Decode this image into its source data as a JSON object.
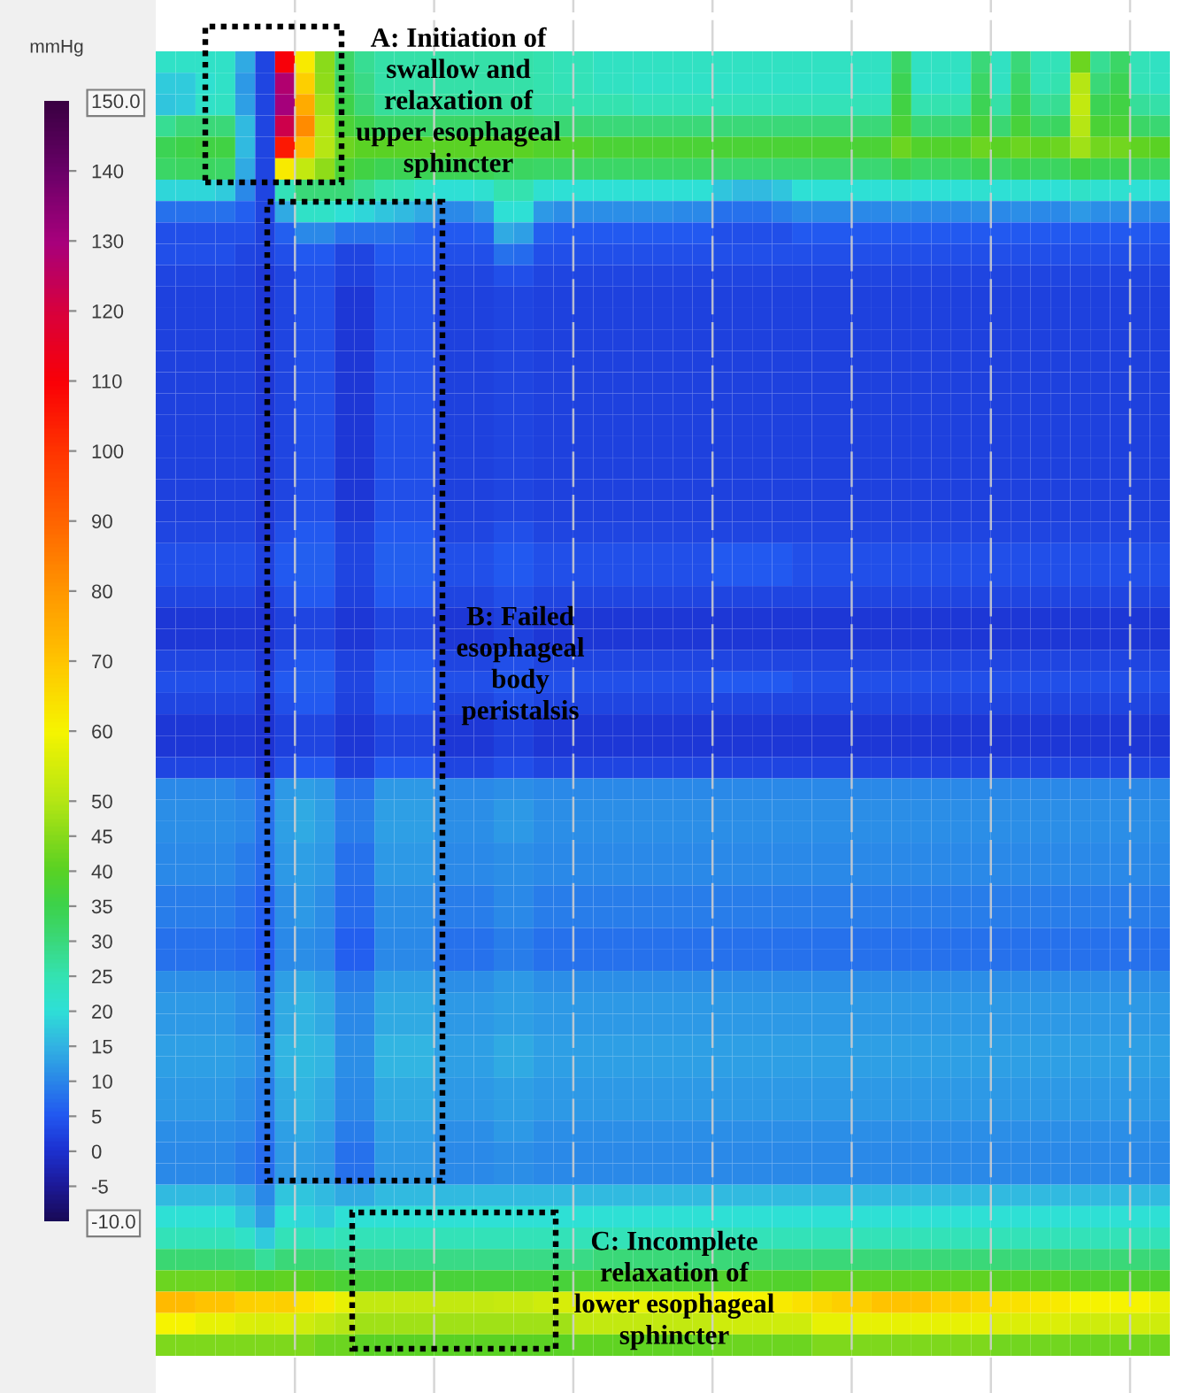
{
  "chart_data": {
    "type": "heatmap",
    "categories": [
      null,
      null,
      null,
      null,
      null,
      null,
      null,
      null,
      null,
      null,
      null,
      null,
      null,
      null,
      null,
      null,
      null,
      null,
      null,
      null,
      null,
      null,
      null,
      null,
      null,
      null,
      null,
      null,
      null,
      null,
      null,
      null,
      null,
      null,
      null,
      null,
      null,
      null,
      null,
      null,
      null,
      null,
      null,
      null,
      null,
      null,
      null,
      null,
      null,
      null,
      null
    ],
    "y_categories": [
      null,
      null,
      null,
      null,
      null,
      null,
      null,
      null,
      null,
      null,
      null,
      null,
      null,
      null,
      null,
      null,
      null,
      null,
      null,
      null,
      null,
      null,
      null,
      null,
      null,
      null,
      null,
      null,
      null,
      null,
      null,
      null,
      null,
      null,
      null,
      null,
      null,
      null,
      null,
      null,
      null,
      null,
      null,
      null,
      null,
      null,
      null,
      null,
      null,
      null,
      null,
      null,
      null,
      null,
      null,
      null,
      null,
      null,
      null,
      null,
      null
    ],
    "cells": [
      [
        22,
        22,
        22,
        22,
        14,
        3,
        110,
        62,
        45,
        32,
        28,
        26,
        26,
        26,
        26,
        26,
        26,
        26,
        26,
        25,
        24,
        24,
        23,
        23,
        23,
        23,
        23,
        23,
        23,
        23,
        23,
        23,
        23,
        23,
        23,
        23,
        23,
        32,
        23,
        23,
        23,
        30,
        23,
        30,
        24,
        24,
        42,
        28,
        32,
        24,
        23
      ],
      [
        18,
        18,
        21,
        22,
        12,
        3,
        128,
        68,
        46,
        33,
        29,
        26,
        26,
        26,
        26,
        26,
        26,
        26,
        26,
        25,
        24,
        24,
        23,
        23,
        22,
        22,
        22,
        22,
        22,
        22,
        22,
        22,
        22,
        22,
        22,
        22,
        22,
        34,
        22,
        22,
        22,
        32,
        23,
        32,
        24,
        25,
        50,
        30,
        34,
        24,
        23
      ],
      [
        17,
        18,
        22,
        23,
        13,
        3,
        130,
        75,
        48,
        35,
        30,
        27,
        27,
        27,
        27,
        27,
        27,
        27,
        27,
        26,
        26,
        25,
        25,
        25,
        24,
        24,
        24,
        24,
        24,
        24,
        24,
        24,
        24,
        24,
        24,
        24,
        24,
        36,
        25,
        25,
        25,
        34,
        26,
        34,
        27,
        28,
        52,
        34,
        36,
        27,
        26
      ],
      [
        28,
        30,
        30,
        30,
        16,
        3,
        122,
        82,
        50,
        38,
        35,
        32,
        32,
        32,
        32,
        32,
        32,
        32,
        32,
        31,
        31,
        31,
        30,
        30,
        30,
        30,
        30,
        30,
        30,
        30,
        30,
        30,
        30,
        30,
        30,
        30,
        30,
        38,
        31,
        31,
        31,
        37,
        31,
        37,
        32,
        33,
        50,
        38,
        38,
        32,
        31
      ],
      [
        34,
        35,
        36,
        36,
        16,
        3,
        105,
        72,
        50,
        42,
        40,
        40,
        40,
        40,
        40,
        40,
        40,
        40,
        40,
        39,
        39,
        39,
        38,
        38,
        38,
        38,
        38,
        38,
        38,
        38,
        38,
        38,
        38,
        38,
        38,
        38,
        38,
        42,
        39,
        39,
        39,
        42,
        40,
        42,
        41,
        42,
        48,
        43,
        43,
        41,
        40
      ],
      [
        32,
        33,
        33,
        32,
        14,
        3,
        62,
        52,
        46,
        38,
        36,
        34,
        34,
        34,
        34,
        34,
        34,
        33,
        33,
        32,
        32,
        32,
        32,
        32,
        32,
        32,
        32,
        32,
        31,
        31,
        31,
        31,
        31,
        31,
        31,
        31,
        31,
        34,
        32,
        32,
        32,
        34,
        32,
        34,
        33,
        33,
        36,
        34,
        34,
        33,
        32
      ],
      [
        19,
        19,
        19,
        18,
        10,
        3,
        24,
        30,
        30,
        30,
        28,
        25,
        24,
        22,
        20,
        20,
        21,
        25,
        25,
        21,
        20,
        20,
        20,
        20,
        20,
        20,
        20,
        20,
        17,
        16,
        16,
        17,
        20,
        20,
        20,
        20,
        20,
        21,
        20,
        20,
        20,
        21,
        20,
        21,
        20,
        20,
        22,
        21,
        21,
        20,
        20
      ],
      [
        8,
        8,
        8,
        8,
        6,
        3,
        14,
        22,
        22,
        20,
        19,
        17,
        16,
        14,
        10,
        10,
        12,
        20,
        20,
        12,
        11,
        11,
        11,
        11,
        11,
        11,
        10,
        10,
        8,
        8,
        8,
        9,
        10,
        10,
        10,
        10,
        10,
        11,
        10,
        10,
        10,
        11,
        10,
        11,
        10,
        10,
        12,
        11,
        11,
        10,
        10
      ],
      [
        4,
        4,
        4,
        4,
        4,
        2,
        6,
        10,
        10,
        8,
        8,
        8,
        7,
        6,
        5,
        5,
        6,
        14,
        13,
        6,
        5,
        5,
        5,
        5,
        5,
        5,
        5,
        5,
        4,
        4,
        4,
        4,
        5,
        5,
        5,
        5,
        5,
        5,
        5,
        5,
        5,
        5,
        5,
        5,
        5,
        5,
        5,
        5,
        5,
        5,
        5
      ],
      [
        4,
        4,
        4,
        4,
        3,
        2,
        4,
        5,
        5,
        3,
        3,
        5,
        5,
        5,
        4,
        4,
        4,
        8,
        7,
        4,
        4,
        4,
        4,
        4,
        4,
        4,
        4,
        4,
        4,
        4,
        4,
        4,
        4,
        4,
        4,
        4,
        4,
        4,
        4,
        4,
        4,
        4,
        4,
        4,
        4,
        4,
        4,
        4,
        4,
        4,
        4
      ],
      [
        3,
        3,
        3,
        3,
        2,
        1,
        3,
        4,
        4,
        2,
        2,
        4,
        4,
        4,
        3,
        3,
        3,
        4,
        4,
        3,
        3,
        3,
        3,
        3,
        3,
        3,
        3,
        3,
        3,
        3,
        3,
        3,
        3,
        3,
        3,
        3,
        3,
        3,
        3,
        3,
        3,
        3,
        3,
        3,
        3,
        3,
        3,
        3,
        3,
        3,
        3
      ],
      [
        2,
        2,
        2,
        2,
        2,
        1,
        3,
        4,
        4,
        1,
        1,
        4,
        4,
        4,
        2,
        2,
        2,
        3,
        3,
        2,
        2,
        2,
        2,
        2,
        2,
        2,
        2,
        2,
        2,
        2,
        2,
        2,
        2,
        2,
        2,
        2,
        2,
        2,
        2,
        2,
        2,
        2,
        2,
        2,
        2,
        2,
        2,
        2,
        2,
        2,
        2
      ],
      [
        2,
        2,
        2,
        2,
        2,
        1,
        3,
        4,
        4,
        1,
        1,
        4,
        4,
        4,
        2,
        2,
        2,
        3,
        3,
        2,
        2,
        2,
        2,
        2,
        2,
        2,
        2,
        2,
        2,
        2,
        2,
        2,
        2,
        2,
        2,
        2,
        2,
        2,
        2,
        2,
        2,
        2,
        2,
        2,
        2,
        2,
        2,
        2,
        2,
        2,
        2
      ],
      [
        2,
        2,
        2,
        2,
        2,
        1,
        3,
        4,
        4,
        1,
        1,
        4,
        4,
        4,
        2,
        2,
        2,
        3,
        3,
        2,
        2,
        2,
        2,
        2,
        2,
        2,
        2,
        2,
        2,
        2,
        2,
        2,
        2,
        2,
        2,
        2,
        2,
        2,
        2,
        2,
        2,
        2,
        2,
        2,
        2,
        2,
        2,
        2,
        2,
        2,
        2
      ],
      [
        2,
        2,
        2,
        2,
        2,
        1,
        3,
        4,
        4,
        1,
        1,
        4,
        4,
        4,
        2,
        2,
        2,
        3,
        3,
        2,
        2,
        2,
        2,
        2,
        2,
        2,
        2,
        2,
        2,
        2,
        2,
        2,
        2,
        2,
        2,
        2,
        2,
        2,
        2,
        2,
        2,
        2,
        2,
        2,
        2,
        2,
        2,
        2,
        2,
        2,
        2
      ],
      [
        2,
        2,
        2,
        2,
        2,
        1,
        3,
        4,
        4,
        1,
        1,
        4,
        4,
        4,
        2,
        2,
        2,
        3,
        3,
        2,
        2,
        2,
        2,
        2,
        2,
        2,
        2,
        2,
        2,
        2,
        2,
        2,
        2,
        2,
        2,
        2,
        2,
        2,
        2,
        2,
        2,
        2,
        2,
        2,
        2,
        2,
        2,
        2,
        2,
        2,
        2
      ],
      [
        2,
        2,
        2,
        2,
        2,
        1,
        3,
        4,
        4,
        1,
        1,
        4,
        4,
        4,
        2,
        2,
        2,
        3,
        3,
        2,
        2,
        2,
        2,
        2,
        2,
        2,
        2,
        2,
        2,
        2,
        2,
        2,
        2,
        2,
        2,
        2,
        2,
        2,
        2,
        2,
        2,
        2,
        2,
        2,
        2,
        2,
        2,
        2,
        2,
        2,
        2
      ],
      [
        2,
        2,
        2,
        2,
        2,
        1,
        3,
        4,
        4,
        1,
        1,
        4,
        4,
        4,
        2,
        2,
        2,
        3,
        3,
        2,
        2,
        2,
        2,
        2,
        2,
        2,
        2,
        2,
        2,
        2,
        2,
        2,
        2,
        2,
        2,
        2,
        2,
        2,
        2,
        2,
        2,
        2,
        2,
        2,
        2,
        2,
        2,
        2,
        2,
        2,
        2
      ],
      [
        2,
        2,
        2,
        2,
        2,
        1,
        3,
        4,
        4,
        1,
        1,
        4,
        4,
        4,
        2,
        2,
        2,
        3,
        3,
        2,
        2,
        2,
        2,
        2,
        2,
        2,
        2,
        2,
        2,
        2,
        2,
        2,
        2,
        2,
        2,
        2,
        2,
        2,
        2,
        2,
        2,
        2,
        2,
        2,
        2,
        2,
        2,
        2,
        2,
        2,
        2
      ],
      [
        2,
        2,
        2,
        2,
        2,
        1,
        3,
        4,
        4,
        1,
        1,
        4,
        4,
        4,
        2,
        2,
        2,
        3,
        3,
        2,
        2,
        2,
        2,
        2,
        2,
        2,
        2,
        2,
        2,
        2,
        2,
        2,
        2,
        2,
        2,
        2,
        2,
        2,
        2,
        2,
        2,
        2,
        2,
        2,
        2,
        2,
        2,
        2,
        2,
        2,
        2
      ],
      [
        2,
        2,
        2,
        2,
        2,
        1,
        3,
        4,
        4,
        1,
        1,
        4,
        4,
        4,
        2,
        2,
        2,
        3,
        3,
        2,
        2,
        2,
        2,
        2,
        2,
        2,
        2,
        2,
        2,
        2,
        2,
        2,
        2,
        2,
        2,
        2,
        2,
        2,
        2,
        2,
        2,
        2,
        2,
        2,
        2,
        2,
        2,
        2,
        2,
        2,
        2
      ],
      [
        2,
        2,
        2,
        2,
        2,
        1,
        3,
        4,
        4,
        1,
        1,
        4,
        4,
        4,
        2,
        2,
        2,
        3,
        3,
        2,
        2,
        2,
        2,
        2,
        2,
        2,
        2,
        2,
        2,
        2,
        2,
        2,
        2,
        2,
        2,
        2,
        2,
        2,
        2,
        2,
        2,
        2,
        2,
        2,
        2,
        2,
        2,
        2,
        2,
        2,
        2
      ],
      [
        3,
        3,
        3,
        3,
        3,
        1,
        4,
        5,
        5,
        2,
        2,
        5,
        5,
        5,
        3,
        3,
        3,
        4,
        4,
        3,
        3,
        3,
        3,
        3,
        3,
        3,
        3,
        3,
        3,
        3,
        3,
        3,
        3,
        3,
        3,
        3,
        3,
        3,
        3,
        3,
        3,
        3,
        3,
        3,
        3,
        3,
        3,
        3,
        3,
        3,
        3
      ],
      [
        4,
        4,
        4,
        4,
        4,
        2,
        5,
        6,
        6,
        3,
        3,
        6,
        6,
        6,
        4,
        4,
        4,
        5,
        5,
        4,
        4,
        4,
        4,
        4,
        4,
        4,
        4,
        4,
        5,
        5,
        5,
        5,
        4,
        4,
        4,
        4,
        4,
        4,
        4,
        4,
        4,
        4,
        4,
        4,
        4,
        4,
        4,
        4,
        4,
        4,
        4
      ],
      [
        4,
        4,
        4,
        4,
        4,
        2,
        5,
        6,
        6,
        3,
        3,
        6,
        6,
        6,
        4,
        4,
        4,
        5,
        5,
        4,
        4,
        4,
        4,
        4,
        4,
        4,
        4,
        4,
        5,
        5,
        5,
        5,
        4,
        4,
        4,
        4,
        4,
        4,
        4,
        4,
        4,
        4,
        4,
        4,
        4,
        4,
        4,
        4,
        4,
        4,
        4
      ],
      [
        3,
        3,
        3,
        3,
        3,
        1,
        4,
        5,
        5,
        2,
        2,
        5,
        5,
        5,
        3,
        3,
        3,
        4,
        4,
        3,
        3,
        3,
        3,
        3,
        3,
        3,
        3,
        3,
        3,
        3,
        3,
        3,
        3,
        3,
        3,
        3,
        3,
        3,
        3,
        3,
        3,
        3,
        3,
        3,
        3,
        3,
        3,
        3,
        3,
        3,
        3
      ],
      [
        1,
        1,
        1,
        1,
        1,
        0,
        2,
        3,
        3,
        1,
        1,
        3,
        3,
        3,
        1,
        1,
        1,
        2,
        2,
        1,
        1,
        1,
        1,
        1,
        1,
        1,
        1,
        1,
        1,
        1,
        1,
        1,
        1,
        1,
        1,
        1,
        1,
        1,
        1,
        1,
        1,
        1,
        1,
        1,
        1,
        1,
        1,
        1,
        1,
        1,
        1
      ],
      [
        1,
        1,
        1,
        1,
        1,
        0,
        2,
        3,
        3,
        1,
        1,
        3,
        3,
        3,
        1,
        1,
        1,
        2,
        2,
        1,
        1,
        1,
        1,
        1,
        1,
        1,
        1,
        1,
        1,
        1,
        1,
        1,
        1,
        1,
        1,
        1,
        1,
        1,
        1,
        1,
        1,
        1,
        1,
        1,
        1,
        1,
        1,
        1,
        1,
        1,
        1
      ],
      [
        3,
        3,
        3,
        3,
        3,
        1,
        4,
        5,
        5,
        2,
        2,
        5,
        5,
        5,
        3,
        3,
        3,
        4,
        4,
        3,
        3,
        3,
        3,
        3,
        3,
        3,
        3,
        3,
        3,
        3,
        3,
        3,
        3,
        3,
        3,
        3,
        3,
        3,
        3,
        3,
        3,
        3,
        3,
        3,
        3,
        3,
        3,
        3,
        3,
        3,
        3
      ],
      [
        4,
        4,
        4,
        4,
        4,
        2,
        5,
        6,
        6,
        3,
        3,
        6,
        6,
        6,
        4,
        4,
        4,
        5,
        5,
        4,
        4,
        4,
        4,
        4,
        4,
        4,
        4,
        4,
        5,
        5,
        5,
        5,
        4,
        4,
        4,
        4,
        4,
        4,
        4,
        4,
        4,
        4,
        4,
        4,
        4,
        4,
        4,
        4,
        4,
        4,
        4
      ],
      [
        3,
        3,
        3,
        3,
        3,
        1,
        4,
        5,
        5,
        2,
        2,
        5,
        5,
        5,
        3,
        3,
        3,
        4,
        4,
        3,
        3,
        3,
        3,
        3,
        3,
        3,
        3,
        3,
        3,
        3,
        3,
        3,
        3,
        3,
        3,
        3,
        3,
        3,
        3,
        3,
        3,
        3,
        3,
        3,
        3,
        3,
        3,
        3,
        3,
        3,
        3
      ],
      [
        1,
        1,
        1,
        1,
        1,
        0,
        2,
        3,
        3,
        1,
        1,
        3,
        3,
        3,
        1,
        1,
        1,
        2,
        2,
        1,
        1,
        1,
        1,
        1,
        1,
        1,
        1,
        1,
        1,
        1,
        1,
        1,
        1,
        1,
        1,
        1,
        1,
        1,
        1,
        1,
        1,
        1,
        1,
        1,
        1,
        1,
        1,
        1,
        1,
        1,
        1
      ],
      [
        1,
        1,
        1,
        1,
        1,
        0,
        2,
        3,
        3,
        1,
        1,
        3,
        3,
        3,
        1,
        1,
        1,
        2,
        2,
        1,
        1,
        1,
        1,
        1,
        1,
        1,
        1,
        1,
        1,
        1,
        1,
        1,
        1,
        1,
        1,
        1,
        1,
        1,
        1,
        1,
        1,
        1,
        1,
        1,
        1,
        1,
        1,
        1,
        1,
        1,
        1
      ],
      [
        3,
        3,
        3,
        3,
        3,
        1,
        4,
        5,
        5,
        2,
        2,
        5,
        5,
        5,
        3,
        3,
        3,
        4,
        4,
        3,
        3,
        3,
        3,
        3,
        3,
        3,
        3,
        3,
        3,
        3,
        3,
        3,
        3,
        3,
        3,
        3,
        3,
        3,
        3,
        3,
        3,
        3,
        3,
        3,
        3,
        3,
        3,
        3,
        3,
        3,
        3
      ],
      [
        10,
        10,
        10,
        10,
        9,
        7,
        12,
        13,
        12,
        8,
        8,
        12,
        12,
        12,
        10,
        10,
        10,
        11,
        11,
        10,
        10,
        10,
        10,
        10,
        10,
        10,
        10,
        10,
        10,
        10,
        10,
        10,
        10,
        10,
        10,
        10,
        10,
        10,
        10,
        10,
        10,
        10,
        10,
        10,
        10,
        10,
        10,
        10,
        10,
        10,
        10
      ],
      [
        11,
        11,
        11,
        11,
        10,
        8,
        13,
        14,
        13,
        9,
        9,
        13,
        13,
        13,
        11,
        11,
        11,
        12,
        12,
        11,
        11,
        11,
        11,
        11,
        11,
        11,
        11,
        11,
        11,
        11,
        11,
        11,
        11,
        11,
        11,
        11,
        11,
        11,
        11,
        11,
        11,
        11,
        11,
        11,
        11,
        11,
        11,
        11,
        11,
        11,
        11
      ],
      [
        11,
        11,
        11,
        11,
        10,
        8,
        13,
        14,
        13,
        9,
        9,
        13,
        13,
        13,
        11,
        11,
        11,
        12,
        12,
        11,
        11,
        11,
        11,
        11,
        11,
        11,
        11,
        11,
        11,
        11,
        11,
        11,
        11,
        11,
        11,
        11,
        11,
        11,
        11,
        11,
        11,
        11,
        11,
        11,
        11,
        11,
        11,
        11,
        11,
        11,
        11
      ],
      [
        10,
        10,
        10,
        10,
        9,
        7,
        12,
        13,
        12,
        8,
        8,
        12,
        12,
        12,
        10,
        10,
        10,
        11,
        11,
        10,
        10,
        10,
        10,
        10,
        10,
        10,
        10,
        10,
        10,
        10,
        10,
        10,
        10,
        10,
        10,
        10,
        10,
        10,
        10,
        10,
        10,
        10,
        10,
        10,
        10,
        10,
        10,
        10,
        10,
        10,
        10
      ],
      [
        10,
        10,
        10,
        10,
        9,
        7,
        12,
        13,
        12,
        8,
        8,
        12,
        12,
        12,
        10,
        10,
        10,
        11,
        11,
        10,
        10,
        10,
        10,
        10,
        10,
        10,
        10,
        10,
        10,
        10,
        10,
        10,
        10,
        10,
        10,
        10,
        10,
        10,
        10,
        10,
        10,
        10,
        10,
        10,
        10,
        10,
        10,
        10,
        10,
        10,
        10
      ],
      [
        9,
        9,
        9,
        9,
        8,
        6,
        11,
        12,
        11,
        7,
        7,
        11,
        11,
        11,
        9,
        9,
        9,
        10,
        10,
        9,
        9,
        9,
        9,
        9,
        9,
        9,
        9,
        9,
        9,
        9,
        9,
        9,
        9,
        9,
        9,
        9,
        9,
        9,
        9,
        9,
        9,
        9,
        9,
        9,
        9,
        9,
        9,
        9,
        9,
        9,
        9
      ],
      [
        9,
        9,
        9,
        9,
        8,
        6,
        11,
        12,
        11,
        7,
        7,
        11,
        11,
        11,
        9,
        9,
        9,
        10,
        10,
        9,
        9,
        9,
        9,
        9,
        9,
        9,
        9,
        9,
        9,
        9,
        9,
        9,
        9,
        9,
        9,
        9,
        9,
        9,
        9,
        9,
        9,
        9,
        9,
        9,
        9,
        9,
        9,
        9,
        9,
        9,
        9
      ],
      [
        8,
        8,
        8,
        8,
        7,
        5,
        10,
        11,
        10,
        6,
        6,
        10,
        10,
        10,
        8,
        8,
        8,
        9,
        9,
        8,
        8,
        8,
        8,
        8,
        8,
        8,
        8,
        8,
        8,
        8,
        8,
        8,
        8,
        8,
        8,
        8,
        8,
        8,
        8,
        8,
        8,
        8,
        8,
        8,
        8,
        8,
        8,
        8,
        8,
        8,
        8
      ],
      [
        8,
        8,
        8,
        8,
        7,
        5,
        10,
        11,
        10,
        6,
        6,
        10,
        10,
        10,
        8,
        8,
        8,
        9,
        9,
        8,
        8,
        8,
        8,
        8,
        8,
        8,
        8,
        8,
        8,
        8,
        8,
        8,
        8,
        8,
        8,
        8,
        8,
        8,
        8,
        8,
        8,
        8,
        8,
        8,
        8,
        8,
        8,
        8,
        8,
        8,
        8
      ],
      [
        11,
        11,
        11,
        11,
        10,
        8,
        13,
        14,
        13,
        9,
        9,
        13,
        13,
        13,
        11,
        11,
        11,
        12,
        12,
        11,
        11,
        11,
        11,
        11,
        11,
        11,
        11,
        11,
        11,
        11,
        11,
        11,
        11,
        11,
        11,
        11,
        11,
        11,
        11,
        11,
        11,
        11,
        11,
        11,
        11,
        11,
        11,
        11,
        11,
        11,
        11
      ],
      [
        12,
        12,
        12,
        12,
        11,
        9,
        14,
        15,
        14,
        10,
        10,
        14,
        14,
        14,
        12,
        12,
        12,
        13,
        13,
        12,
        12,
        12,
        12,
        12,
        12,
        12,
        12,
        12,
        12,
        12,
        12,
        12,
        12,
        12,
        12,
        12,
        12,
        12,
        12,
        12,
        12,
        12,
        12,
        12,
        12,
        12,
        12,
        12,
        12,
        12,
        12
      ],
      [
        12,
        12,
        12,
        12,
        11,
        9,
        14,
        15,
        14,
        10,
        10,
        14,
        14,
        14,
        12,
        12,
        12,
        13,
        13,
        12,
        12,
        12,
        12,
        12,
        12,
        12,
        12,
        12,
        12,
        12,
        12,
        12,
        12,
        12,
        12,
        12,
        12,
        12,
        12,
        12,
        12,
        12,
        12,
        12,
        12,
        12,
        12,
        12,
        12,
        12,
        12
      ],
      [
        13,
        13,
        13,
        13,
        12,
        10,
        15,
        16,
        15,
        11,
        11,
        15,
        15,
        15,
        13,
        13,
        13,
        14,
        14,
        13,
        13,
        13,
        13,
        13,
        13,
        13,
        13,
        13,
        13,
        13,
        13,
        13,
        13,
        13,
        13,
        13,
        13,
        13,
        13,
        13,
        13,
        13,
        13,
        13,
        13,
        13,
        13,
        13,
        13,
        13,
        13
      ],
      [
        13,
        13,
        13,
        13,
        12,
        10,
        15,
        16,
        15,
        11,
        11,
        15,
        15,
        15,
        13,
        13,
        13,
        14,
        14,
        13,
        13,
        13,
        13,
        13,
        13,
        13,
        13,
        13,
        13,
        13,
        13,
        13,
        13,
        13,
        13,
        13,
        13,
        13,
        13,
        13,
        13,
        13,
        13,
        13,
        13,
        13,
        13,
        13,
        13,
        13,
        13
      ],
      [
        12,
        12,
        12,
        12,
        11,
        9,
        14,
        15,
        14,
        10,
        10,
        14,
        14,
        14,
        12,
        12,
        12,
        13,
        13,
        12,
        12,
        12,
        12,
        12,
        12,
        12,
        12,
        12,
        12,
        12,
        12,
        12,
        12,
        12,
        12,
        12,
        12,
        12,
        12,
        12,
        12,
        12,
        12,
        12,
        12,
        12,
        12,
        12,
        12,
        12,
        12
      ],
      [
        12,
        12,
        12,
        12,
        11,
        9,
        14,
        15,
        14,
        10,
        10,
        14,
        14,
        14,
        12,
        12,
        12,
        13,
        13,
        12,
        12,
        12,
        12,
        12,
        12,
        12,
        12,
        12,
        12,
        12,
        12,
        12,
        12,
        12,
        12,
        12,
        12,
        12,
        12,
        12,
        12,
        12,
        12,
        12,
        12,
        12,
        12,
        12,
        12,
        12,
        12
      ],
      [
        11,
        11,
        11,
        11,
        10,
        8,
        13,
        14,
        13,
        9,
        9,
        13,
        13,
        13,
        11,
        11,
        11,
        12,
        12,
        11,
        11,
        11,
        11,
        11,
        11,
        11,
        11,
        11,
        11,
        11,
        11,
        11,
        11,
        11,
        11,
        11,
        11,
        11,
        11,
        11,
        11,
        11,
        11,
        11,
        11,
        11,
        11,
        11,
        11,
        11,
        11
      ],
      [
        10,
        10,
        10,
        10,
        9,
        7,
        12,
        13,
        12,
        8,
        8,
        12,
        12,
        12,
        10,
        10,
        10,
        11,
        11,
        10,
        10,
        10,
        10,
        10,
        10,
        10,
        10,
        10,
        10,
        10,
        10,
        10,
        10,
        10,
        10,
        10,
        10,
        10,
        10,
        10,
        10,
        10,
        10,
        10,
        10,
        10,
        10,
        10,
        10,
        10,
        10
      ],
      [
        10,
        10,
        10,
        10,
        9,
        7,
        12,
        13,
        12,
        8,
        8,
        12,
        12,
        12,
        10,
        10,
        10,
        11,
        11,
        10,
        10,
        10,
        10,
        10,
        10,
        10,
        10,
        10,
        10,
        10,
        10,
        10,
        10,
        10,
        10,
        10,
        10,
        10,
        10,
        10,
        10,
        10,
        10,
        10,
        10,
        10,
        10,
        10,
        10,
        10,
        10
      ],
      [
        16,
        16,
        16,
        16,
        14,
        10,
        17,
        17,
        16,
        14,
        14,
        16,
        16,
        16,
        16,
        16,
        16,
        16,
        16,
        16,
        16,
        16,
        16,
        16,
        16,
        16,
        16,
        16,
        16,
        16,
        16,
        16,
        16,
        16,
        16,
        16,
        16,
        16,
        16,
        16,
        16,
        16,
        16,
        16,
        16,
        16,
        16,
        16,
        16,
        16,
        16
      ],
      [
        20,
        20,
        20,
        20,
        17,
        13,
        20,
        19,
        18,
        20,
        20,
        20,
        20,
        20,
        20,
        20,
        20,
        20,
        20,
        20,
        20,
        20,
        20,
        20,
        20,
        20,
        20,
        20,
        20,
        20,
        20,
        20,
        20,
        20,
        20,
        20,
        20,
        20,
        20,
        20,
        20,
        20,
        20,
        20,
        20,
        20,
        20,
        20,
        20,
        20,
        20
      ],
      [
        24,
        24,
        24,
        24,
        22,
        18,
        24,
        24,
        23,
        24,
        24,
        24,
        24,
        24,
        24,
        24,
        24,
        24,
        24,
        24,
        24,
        24,
        24,
        24,
        24,
        24,
        24,
        24,
        24,
        24,
        24,
        24,
        24,
        24,
        24,
        24,
        24,
        24,
        24,
        24,
        24,
        24,
        24,
        24,
        24,
        24,
        24,
        24,
        24,
        24,
        24
      ],
      [
        31,
        31,
        31,
        31,
        30,
        27,
        30,
        30,
        30,
        29,
        29,
        29,
        29,
        29,
        29,
        29,
        29,
        29,
        29,
        29,
        29,
        29,
        30,
        30,
        30,
        30,
        30,
        30,
        30,
        30,
        30,
        30,
        30,
        30,
        30,
        30,
        30,
        30,
        30,
        30,
        30,
        30,
        30,
        30,
        30,
        30,
        30,
        30,
        30,
        30,
        30
      ],
      [
        42,
        42,
        42,
        42,
        41,
        40,
        41,
        40,
        39,
        38,
        37,
        37,
        37,
        37,
        37,
        37,
        37,
        37,
        37,
        37,
        37,
        38,
        38,
        38,
        38,
        38,
        38,
        38,
        39,
        39,
        39,
        39,
        39,
        41,
        41,
        41,
        41,
        41,
        41,
        41,
        41,
        41,
        40,
        40,
        40,
        40,
        39,
        39,
        39,
        39,
        39
      ],
      [
        72,
        72,
        70,
        70,
        68,
        67,
        68,
        64,
        62,
        58,
        52,
        52,
        52,
        52,
        52,
        52,
        52,
        53,
        53,
        54,
        55,
        57,
        58,
        58,
        58,
        58,
        58,
        58,
        60,
        60,
        60,
        62,
        64,
        66,
        68,
        68,
        70,
        70,
        70,
        68,
        68,
        66,
        64,
        64,
        63,
        62,
        60,
        60,
        60,
        60,
        58
      ],
      [
        60,
        60,
        58,
        58,
        56,
        55,
        56,
        54,
        52,
        50,
        48,
        48,
        48,
        48,
        48,
        48,
        48,
        48,
        48,
        48,
        48,
        52,
        52,
        52,
        52,
        52,
        52,
        52,
        54,
        54,
        54,
        54,
        54,
        58,
        58,
        58,
        58,
        58,
        58,
        58,
        58,
        58,
        56,
        56,
        56,
        56,
        54,
        54,
        54,
        54,
        54
      ],
      [
        44,
        44,
        44,
        44,
        44,
        44,
        44,
        44,
        42,
        42,
        40,
        40,
        40,
        40,
        40,
        40,
        40,
        40,
        40,
        40,
        40,
        41,
        41,
        41,
        41,
        41,
        41,
        41,
        42,
        42,
        42,
        42,
        42,
        44,
        44,
        44,
        44,
        44,
        44,
        44,
        44,
        44,
        43,
        43,
        43,
        43,
        42,
        42,
        42,
        42,
        42
      ]
    ],
    "clim": [
      -10,
      150
    ],
    "cticks": [
      {
        "value": -10,
        "label": "-10.0"
      },
      -5,
      0,
      5,
      10,
      15,
      20,
      25,
      30,
      35,
      40,
      45,
      50,
      60,
      70,
      80,
      90,
      100,
      110,
      120,
      130,
      140,
      {
        "value": 150,
        "label": "150.0"
      }
    ],
    "clabel": "mmHg",
    "grid": "x",
    "annotations": [
      "A: Initiation of\nswallow and\nrelaxation of\nupper esophageal\nsphincter",
      "B: Failed\nesophageal\nbody\nperistalsis",
      "C: Incomplete\nrelaxation of\nlower esophageal\nsphincter"
    ]
  }
}
